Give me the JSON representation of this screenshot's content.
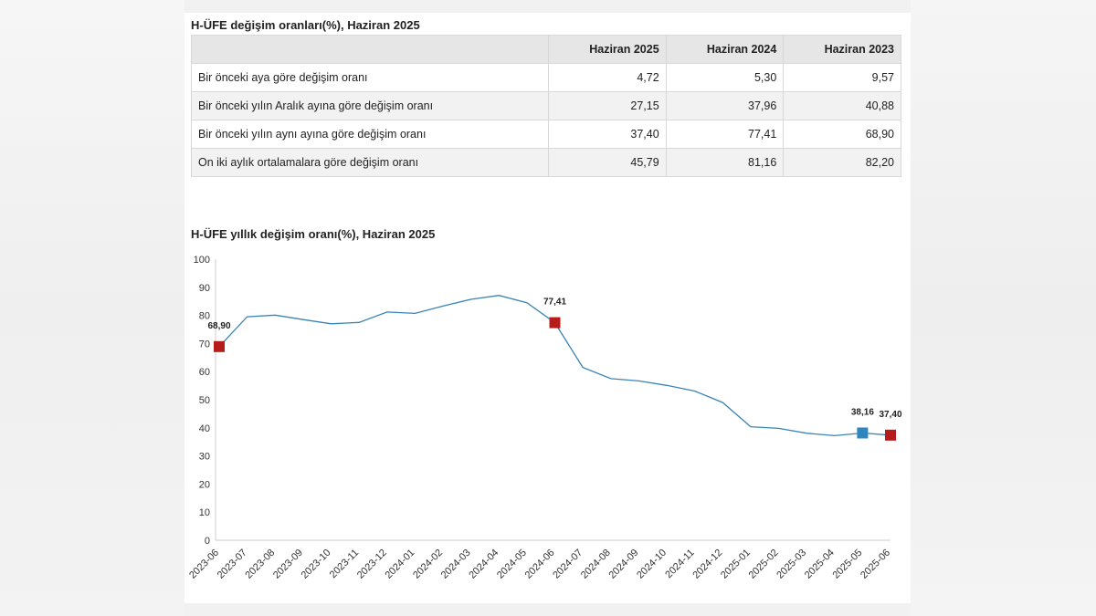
{
  "table": {
    "title": "H-ÜFE değişim oranları(%), Haziran 2025",
    "headers": [
      "",
      "Haziran 2025",
      "Haziran 2024",
      "Haziran 2023"
    ],
    "rows": [
      {
        "label": "Bir önceki aya göre değişim oranı",
        "values": [
          "4,72",
          "5,30",
          "9,57"
        ]
      },
      {
        "label": "Bir önceki yılın Aralık ayına göre değişim oranı",
        "values": [
          "27,15",
          "37,96",
          "40,88"
        ]
      },
      {
        "label": "Bir önceki yılın aynı ayına göre değişim oranı",
        "values": [
          "37,40",
          "77,41",
          "68,90"
        ]
      },
      {
        "label": "On iki aylık ortalamalara göre değişim oranı",
        "values": [
          "45,79",
          "81,16",
          "82,20"
        ]
      }
    ]
  },
  "chart_data": {
    "type": "line",
    "title": "H-ÜFE yıllık değişim oranı(%), Haziran 2025",
    "xlabel": "",
    "ylabel": "",
    "ylim": [
      0,
      100
    ],
    "yticks": [
      0,
      10,
      20,
      30,
      40,
      50,
      60,
      70,
      80,
      90,
      100
    ],
    "grid": false,
    "categories": [
      "2023-06",
      "2023-07",
      "2023-08",
      "2023-09",
      "2023-10",
      "2023-11",
      "2023-12",
      "2024-01",
      "2024-02",
      "2024-03",
      "2024-04",
      "2024-05",
      "2024-06",
      "2024-07",
      "2024-08",
      "2024-09",
      "2024-10",
      "2024-11",
      "2024-12",
      "2025-01",
      "2025-02",
      "2025-03",
      "2025-04",
      "2025-05",
      "2025-06"
    ],
    "series": [
      {
        "values": [
          68.9,
          79.5,
          80.1,
          78.5,
          77.0,
          77.5,
          81.2,
          80.7,
          83.3,
          85.7,
          87.1,
          84.5,
          77.41,
          61.5,
          57.5,
          56.7,
          55.1,
          53.1,
          49.0,
          40.4,
          39.8,
          38.1,
          37.2,
          38.16,
          37.4
        ],
        "color": "#3a84b5"
      }
    ],
    "highlights": [
      {
        "category": "2023-06",
        "value": 68.9,
        "label": "68,90",
        "color": "#b71c1c"
      },
      {
        "category": "2024-06",
        "value": 77.41,
        "label": "77,41",
        "color": "#b71c1c"
      },
      {
        "category": "2025-05",
        "value": 38.16,
        "label": "38,16",
        "color": "#2e86c1"
      },
      {
        "category": "2025-06",
        "value": 37.4,
        "label": "37,40",
        "color": "#b71c1c"
      }
    ]
  }
}
